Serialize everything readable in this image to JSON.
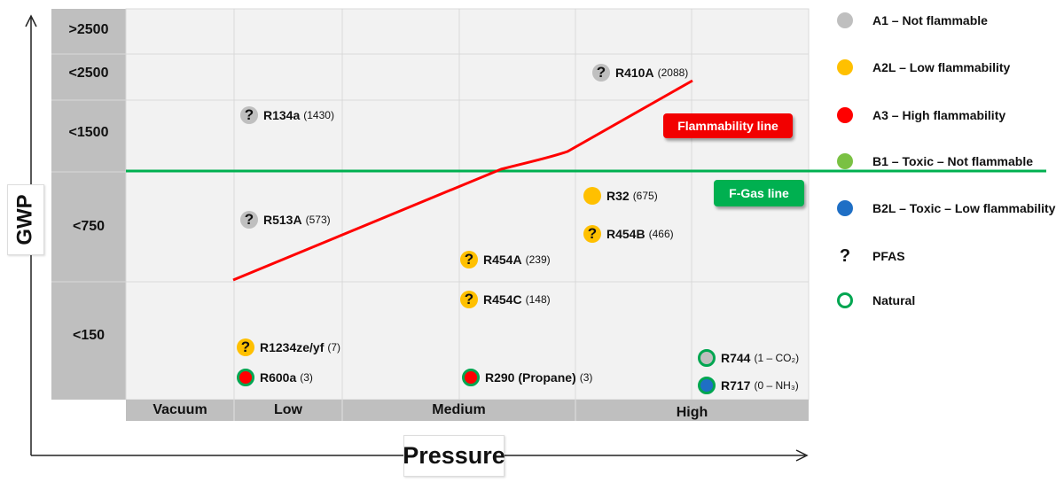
{
  "colors": {
    "a1": "#bfbfbf",
    "a2l": "#ffc000",
    "a3": "#ff0000",
    "b1": "#7ac143",
    "b2l": "#1f6fc5",
    "natural_ring": "#00a651",
    "flammability": "#ff0000",
    "fgas": "#00b050",
    "grid_bg": "#f2f2f2",
    "axis_band": "#bfbfbf"
  },
  "chart_data": {
    "type": "scatter",
    "xlabel": "Pressure",
    "ylabel": "GWP",
    "x_categories": [
      "Vacuum",
      "Low",
      "Medium",
      "High"
    ],
    "y_categories": [
      ">2500",
      "<2500",
      "<1500",
      "<750",
      "<150"
    ],
    "points": [
      {
        "name": "R410A",
        "gwp": "(2088)",
        "pressure": "High",
        "class": "A1",
        "pfas": true,
        "natural": false
      },
      {
        "name": "R134a",
        "gwp": "(1430)",
        "pressure": "Low",
        "class": "A1",
        "pfas": true,
        "natural": false
      },
      {
        "name": "R513A",
        "gwp": "(573)",
        "pressure": "Low",
        "class": "A1",
        "pfas": true,
        "natural": false
      },
      {
        "name": "R32",
        "gwp": "(675)",
        "pressure": "High",
        "class": "A2L",
        "pfas": false,
        "natural": false
      },
      {
        "name": "R454B",
        "gwp": "(466)",
        "pressure": "High",
        "class": "A2L",
        "pfas": true,
        "natural": false
      },
      {
        "name": "R454A",
        "gwp": "(239)",
        "pressure": "Medium",
        "class": "A2L",
        "pfas": true,
        "natural": false
      },
      {
        "name": "R454C",
        "gwp": "(148)",
        "pressure": "Medium",
        "class": "A2L",
        "pfas": true,
        "natural": false
      },
      {
        "name": "R1234ze/yf",
        "gwp": "(7)",
        "pressure": "Low",
        "class": "A2L",
        "pfas": true,
        "natural": false
      },
      {
        "name": "R600a",
        "gwp": "(3)",
        "pressure": "Low",
        "class": "A3",
        "pfas": false,
        "natural": true
      },
      {
        "name": "R290 (Propane)",
        "gwp": "(3)",
        "pressure": "Medium",
        "class": "A3",
        "pfas": false,
        "natural": true
      },
      {
        "name": "R744",
        "gwp": "(1 – CO₂)",
        "pressure": "High",
        "class": "A1",
        "pfas": false,
        "natural": true
      },
      {
        "name": "R717",
        "gwp": "(0 – NH₃)",
        "pressure": "High",
        "class": "B2L",
        "pfas": false,
        "natural": true
      }
    ],
    "lines": [
      {
        "name": "Flammability line"
      },
      {
        "name": "F-Gas line"
      }
    ],
    "legend": [
      {
        "key": "a1",
        "label": "A1 – Not flammable"
      },
      {
        "key": "a2l",
        "label": "A2L – Low flammability"
      },
      {
        "key": "a3",
        "label": "A3 – High flammability"
      },
      {
        "key": "b1",
        "label": "B1 – Toxic – Not flammable"
      },
      {
        "key": "b2l",
        "label": "B2L – Toxic – Low flammability"
      },
      {
        "key": "pfas",
        "label": "PFAS",
        "symbol": "?"
      },
      {
        "key": "natural",
        "label": "Natural"
      }
    ],
    "legend_position": "right"
  }
}
